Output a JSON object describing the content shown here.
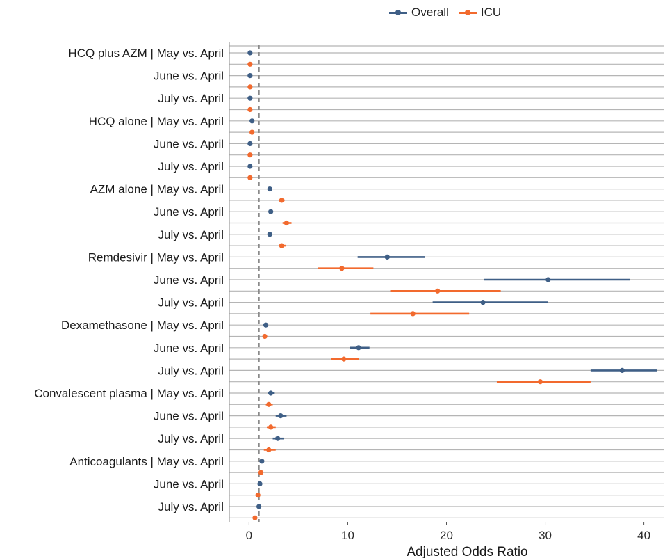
{
  "chart_data": {
    "type": "forest",
    "legend": [
      {
        "name": "Overall",
        "color": "#3f5f86"
      },
      {
        "name": "ICU",
        "color": "#f26a2e"
      }
    ],
    "xlabel": "Adjusted Odds Ratio",
    "xlim": [
      -2.0,
      42.0
    ],
    "xticks": [
      0,
      10,
      20,
      30,
      40
    ],
    "reference_line": 1,
    "row_labels": [
      "HCQ plus AZM | May vs. April",
      "June vs. April",
      "July vs. April",
      "HCQ alone | May vs. April",
      "June vs. April",
      "July vs. April",
      "AZM alone | May vs. April",
      "June vs. April",
      "July vs. April",
      "Remdesivir | May vs. April",
      "June vs. April",
      "July vs. April",
      "Dexamethasone | May vs. April",
      "June vs. April",
      "July vs. April",
      "Convalescent plasma | May vs. April",
      "June vs. April",
      "July vs. April",
      "Anticoagulants | May vs. April",
      "June vs. April",
      "July vs. April"
    ],
    "series": [
      {
        "name": "Overall",
        "points": [
          {
            "or": 0.1,
            "lo": 0.1,
            "hi": 0.1
          },
          {
            "or": 0.1,
            "lo": 0.1,
            "hi": 0.1
          },
          {
            "or": 0.1,
            "lo": 0.1,
            "hi": 0.1
          },
          {
            "or": 0.3,
            "lo": 0.2,
            "hi": 0.4
          },
          {
            "or": 0.1,
            "lo": 0.1,
            "hi": 0.1
          },
          {
            "or": 0.1,
            "lo": 0.1,
            "hi": 0.1
          },
          {
            "or": 2.1,
            "lo": 2.0,
            "hi": 2.3
          },
          {
            "or": 2.2,
            "lo": 2.0,
            "hi": 2.3
          },
          {
            "or": 2.1,
            "lo": 1.9,
            "hi": 2.2
          },
          {
            "or": 14.0,
            "lo": 11.0,
            "hi": 17.8
          },
          {
            "or": 30.3,
            "lo": 23.8,
            "hi": 38.6
          },
          {
            "or": 23.7,
            "lo": 18.6,
            "hi": 30.3
          },
          {
            "or": 1.7,
            "lo": 1.6,
            "hi": 1.8
          },
          {
            "or": 11.1,
            "lo": 10.2,
            "hi": 12.2
          },
          {
            "or": 37.8,
            "lo": 34.6,
            "hi": 41.3
          },
          {
            "or": 2.2,
            "lo": 1.9,
            "hi": 2.6
          },
          {
            "or": 3.2,
            "lo": 2.7,
            "hi": 3.8
          },
          {
            "or": 2.9,
            "lo": 2.4,
            "hi": 3.5
          },
          {
            "or": 1.3,
            "lo": 1.2,
            "hi": 1.4
          },
          {
            "or": 1.1,
            "lo": 1.0,
            "hi": 1.2
          },
          {
            "or": 1.0,
            "lo": 0.9,
            "hi": 1.1
          }
        ]
      },
      {
        "name": "ICU",
        "points": [
          {
            "or": 0.1,
            "lo": 0.1,
            "hi": 0.1
          },
          {
            "or": 0.1,
            "lo": 0.1,
            "hi": 0.1
          },
          {
            "or": 0.1,
            "lo": 0.1,
            "hi": 0.1
          },
          {
            "or": 0.3,
            "lo": 0.2,
            "hi": 0.4
          },
          {
            "or": 0.1,
            "lo": 0.1,
            "hi": 0.1
          },
          {
            "or": 0.1,
            "lo": 0.1,
            "hi": 0.1
          },
          {
            "or": 3.3,
            "lo": 3.0,
            "hi": 3.6
          },
          {
            "or": 3.8,
            "lo": 3.4,
            "hi": 4.3
          },
          {
            "or": 3.3,
            "lo": 3.0,
            "hi": 3.7
          },
          {
            "or": 9.4,
            "lo": 7.0,
            "hi": 12.6
          },
          {
            "or": 19.1,
            "lo": 14.3,
            "hi": 25.5
          },
          {
            "or": 16.6,
            "lo": 12.3,
            "hi": 22.3
          },
          {
            "or": 1.6,
            "lo": 1.4,
            "hi": 1.7
          },
          {
            "or": 9.6,
            "lo": 8.3,
            "hi": 11.1
          },
          {
            "or": 29.5,
            "lo": 25.1,
            "hi": 34.6
          },
          {
            "or": 2.0,
            "lo": 1.7,
            "hi": 2.4
          },
          {
            "or": 2.2,
            "lo": 1.8,
            "hi": 2.7
          },
          {
            "or": 2.0,
            "lo": 1.5,
            "hi": 2.7
          },
          {
            "or": 1.2,
            "lo": 1.1,
            "hi": 1.3
          },
          {
            "or": 0.9,
            "lo": 0.8,
            "hi": 1.0
          },
          {
            "or": 0.6,
            "lo": 0.5,
            "hi": 0.7
          }
        ]
      }
    ]
  }
}
